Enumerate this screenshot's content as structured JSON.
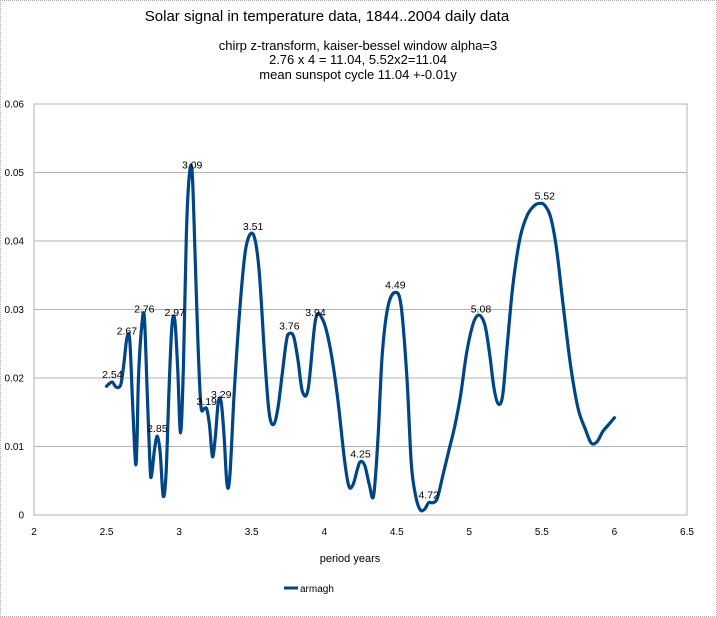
{
  "chart_data": {
    "type": "line",
    "title": "Solar signal in  temperature data, 1844..2004 daily data",
    "subtitle_lines": [
      "chirp z-transform, kaiser-bessel window alpha=3",
      "2.76 x 4 = 11.04, 5.52x2=11.04",
      "mean sunspot cycle 11.04 +-0.01y"
    ],
    "xlabel": "period years",
    "ylabel": "",
    "xlim": [
      2,
      6.5
    ],
    "ylim": [
      0,
      0.06
    ],
    "x_ticks": [
      "2",
      "2.5",
      "3",
      "3.5",
      "4",
      "4.5",
      "5",
      "5.5",
      "6",
      "6.5"
    ],
    "y_ticks": [
      "0",
      "0.01",
      "0.02",
      "0.03",
      "0.04",
      "0.05",
      "0.06"
    ],
    "grid": "horizontal",
    "legend_position": "bottom",
    "series": [
      {
        "name": "armagh",
        "color": "#004586",
        "x": [
          2.5,
          2.52,
          2.54,
          2.56,
          2.58,
          2.6,
          2.62,
          2.64,
          2.66,
          2.68,
          2.7,
          2.71,
          2.72,
          2.74,
          2.76,
          2.78,
          2.8,
          2.81,
          2.83,
          2.85,
          2.87,
          2.89,
          2.91,
          2.93,
          2.95,
          2.97,
          2.99,
          3.01,
          3.03,
          3.05,
          3.07,
          3.09,
          3.11,
          3.13,
          3.15,
          3.17,
          3.19,
          3.21,
          3.23,
          3.25,
          3.27,
          3.29,
          3.31,
          3.33,
          3.35,
          3.38,
          3.42,
          3.46,
          3.51,
          3.55,
          3.59,
          3.62,
          3.65,
          3.68,
          3.71,
          3.74,
          3.76,
          3.79,
          3.82,
          3.85,
          3.89,
          3.94,
          3.99,
          4.04,
          4.09,
          4.14,
          4.17,
          4.2,
          4.23,
          4.25,
          4.28,
          4.31,
          4.34,
          4.37,
          4.4,
          4.44,
          4.49,
          4.53,
          4.57,
          4.6,
          4.63,
          4.66,
          4.69,
          4.72,
          4.75,
          4.78,
          4.82,
          4.86,
          4.9,
          4.94,
          4.98,
          5.02,
          5.05,
          5.08,
          5.11,
          5.14,
          5.17,
          5.2,
          5.23,
          5.26,
          5.3,
          5.35,
          5.4,
          5.45,
          5.49,
          5.52,
          5.56,
          5.6,
          5.65,
          5.7,
          5.75,
          5.8,
          5.84,
          5.88,
          5.92,
          5.96,
          6.0
        ],
        "y": [
          0.0188,
          0.0192,
          0.0194,
          0.0188,
          0.0186,
          0.0192,
          0.0222,
          0.0258,
          0.0255,
          0.016,
          0.0075,
          0.011,
          0.02,
          0.027,
          0.029,
          0.018,
          0.007,
          0.0058,
          0.0095,
          0.0115,
          0.009,
          0.0028,
          0.006,
          0.018,
          0.0275,
          0.0285,
          0.0215,
          0.012,
          0.022,
          0.041,
          0.0495,
          0.05,
          0.038,
          0.025,
          0.016,
          0.0155,
          0.0155,
          0.013,
          0.0085,
          0.0115,
          0.0165,
          0.0165,
          0.0115,
          0.0045,
          0.0058,
          0.018,
          0.0305,
          0.039,
          0.041,
          0.036,
          0.023,
          0.015,
          0.0132,
          0.0155,
          0.0205,
          0.0255,
          0.0265,
          0.026,
          0.0225,
          0.018,
          0.0185,
          0.0285,
          0.0285,
          0.0245,
          0.0175,
          0.008,
          0.0042,
          0.0045,
          0.0068,
          0.0078,
          0.0072,
          0.0045,
          0.0028,
          0.011,
          0.0235,
          0.0305,
          0.0325,
          0.0305,
          0.02,
          0.0075,
          0.0028,
          0.0008,
          0.0008,
          0.0018,
          0.0018,
          0.0025,
          0.006,
          0.0095,
          0.013,
          0.0175,
          0.0235,
          0.0275,
          0.029,
          0.029,
          0.0275,
          0.0235,
          0.0185,
          0.0162,
          0.0175,
          0.0245,
          0.0335,
          0.0405,
          0.0438,
          0.0452,
          0.0455,
          0.0452,
          0.0435,
          0.039,
          0.03,
          0.0215,
          0.0155,
          0.0125,
          0.0105,
          0.0107,
          0.0122,
          0.0132,
          0.0142
        ]
      }
    ],
    "annotations": [
      {
        "text": "2.54",
        "x": 2.54,
        "y": 0.0194
      },
      {
        "text": "2.67",
        "x": 2.64,
        "y": 0.0258
      },
      {
        "text": "2.76",
        "x": 2.76,
        "y": 0.029
      },
      {
        "text": "2.85",
        "x": 2.85,
        "y": 0.0115
      },
      {
        "text": "2.97",
        "x": 2.97,
        "y": 0.0285
      },
      {
        "text": "3.09",
        "x": 3.09,
        "y": 0.05
      },
      {
        "text": "3.19",
        "x": 3.19,
        "y": 0.0155
      },
      {
        "text": "3.29",
        "x": 3.29,
        "y": 0.0165
      },
      {
        "text": "3.51",
        "x": 3.51,
        "y": 0.041
      },
      {
        "text": "3.76",
        "x": 3.76,
        "y": 0.0265
      },
      {
        "text": "3.94",
        "x": 3.94,
        "y": 0.0285
      },
      {
        "text": "4.25",
        "x": 4.25,
        "y": 0.0078
      },
      {
        "text": "4.49",
        "x": 4.49,
        "y": 0.0325
      },
      {
        "text": "4.72",
        "x": 4.72,
        "y": 0.0018
      },
      {
        "text": "5.08",
        "x": 5.08,
        "y": 0.029
      },
      {
        "text": "5.52",
        "x": 5.52,
        "y": 0.0455
      }
    ]
  }
}
